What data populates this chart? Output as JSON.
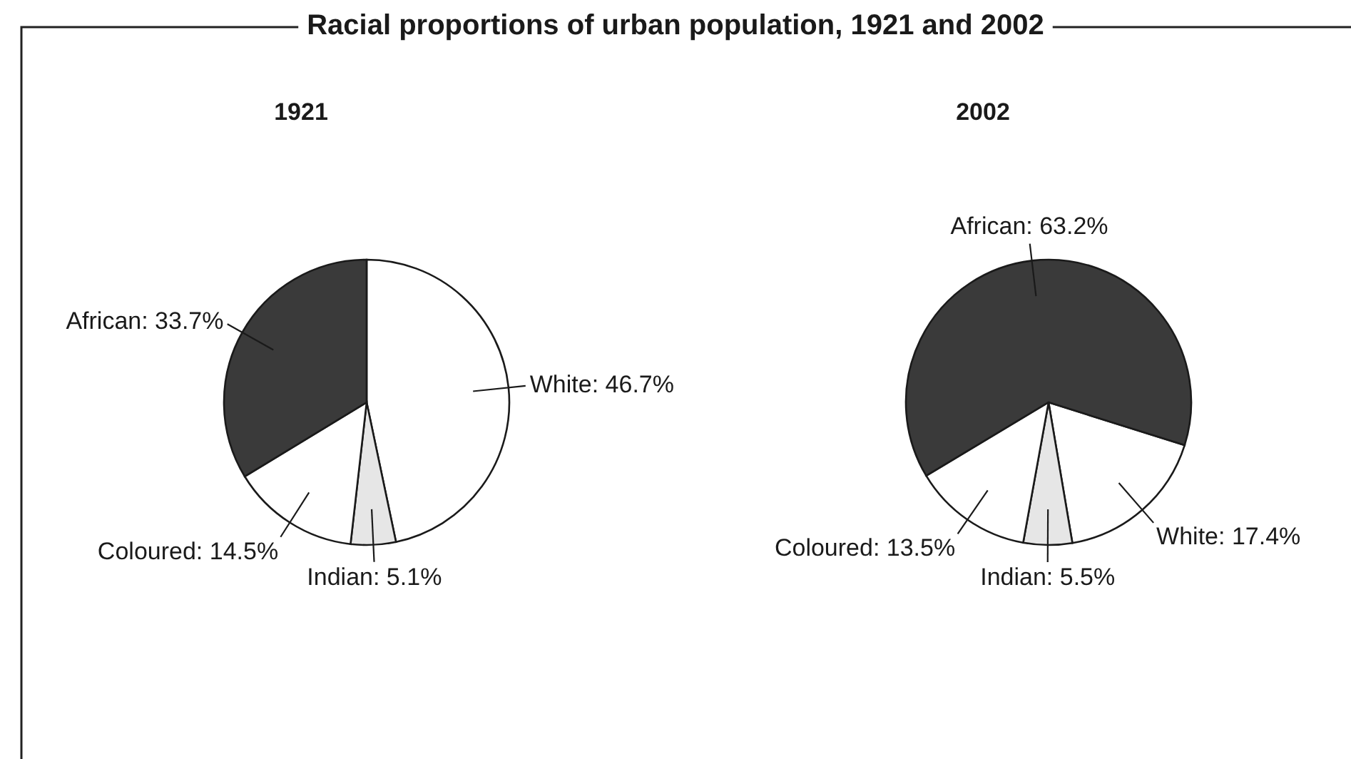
{
  "chart_data": [
    {
      "type": "pie",
      "title": "1921",
      "categories": [
        "White",
        "Indian",
        "Coloured",
        "African"
      ],
      "values": [
        46.7,
        5.1,
        14.5,
        33.7
      ],
      "colors": [
        "#ffffff",
        "#e6e6e6",
        "#ffffff",
        "#3a3a3a"
      ],
      "value_labels": [
        "46.7%",
        "5.1%",
        "14.5%",
        "33.7%"
      ],
      "annotations": [
        "Racial proportions of urban population, 1921 and 2002"
      ]
    },
    {
      "type": "pie",
      "title": "2002",
      "categories": [
        "White",
        "Indian",
        "Coloured",
        "African"
      ],
      "values": [
        17.4,
        5.5,
        13.5,
        63.2
      ],
      "colors": [
        "#ffffff",
        "#e6e6e6",
        "#ffffff",
        "#3a3a3a"
      ],
      "value_labels": [
        "17.4%",
        "5.5%",
        "13.5%",
        "63.2%"
      ]
    }
  ]
}
